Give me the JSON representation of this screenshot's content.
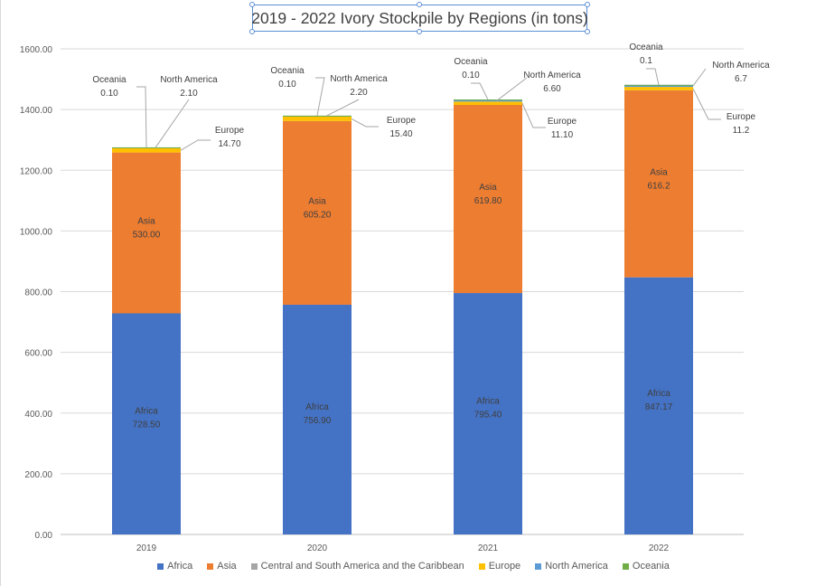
{
  "chart_data": {
    "type": "bar",
    "stacked": true,
    "title": "2019 - 2022 Ivory Stockpile by Regions (in tons)",
    "categories": [
      "2019",
      "2020",
      "2021",
      "2022"
    ],
    "ylim": [
      0,
      1600
    ],
    "yticks": [
      "0.00",
      "200.00",
      "400.00",
      "600.00",
      "800.00",
      "1000.00",
      "1200.00",
      "1400.00",
      "1600.00"
    ],
    "grid": true,
    "legend_position": "bottom",
    "series": [
      {
        "name": "Africa",
        "color": "#4472c4",
        "values": [
          728.5,
          756.9,
          795.4,
          847.17
        ],
        "labels": [
          "728.50",
          "756.90",
          "795.40",
          "847.17"
        ]
      },
      {
        "name": "Asia",
        "color": "#ed7d31",
        "values": [
          530.0,
          605.2,
          619.8,
          616.2
        ],
        "labels": [
          "530.00",
          "605.20",
          "619.80",
          "616.2"
        ]
      },
      {
        "name": "Central and South America and the Caribbean",
        "color": "#a5a5a5",
        "values": [
          0,
          0,
          0,
          0
        ],
        "labels": []
      },
      {
        "name": "Europe",
        "color": "#ffc000",
        "values": [
          14.7,
          15.4,
          11.1,
          11.2
        ],
        "labels": [
          "14.70",
          "15.40",
          "11.10",
          "11.2"
        ]
      },
      {
        "name": "North America",
        "color": "#5b9bd5",
        "values": [
          2.1,
          2.2,
          6.6,
          6.7
        ],
        "labels": [
          "2.10",
          "2.20",
          "6.60",
          "6.7"
        ]
      },
      {
        "name": "Oceania",
        "color": "#70ad47",
        "values": [
          0.1,
          0.1,
          0.1,
          0.1
        ],
        "labels": [
          "0.10",
          "0.10",
          "0.10",
          "0.1"
        ]
      }
    ]
  }
}
